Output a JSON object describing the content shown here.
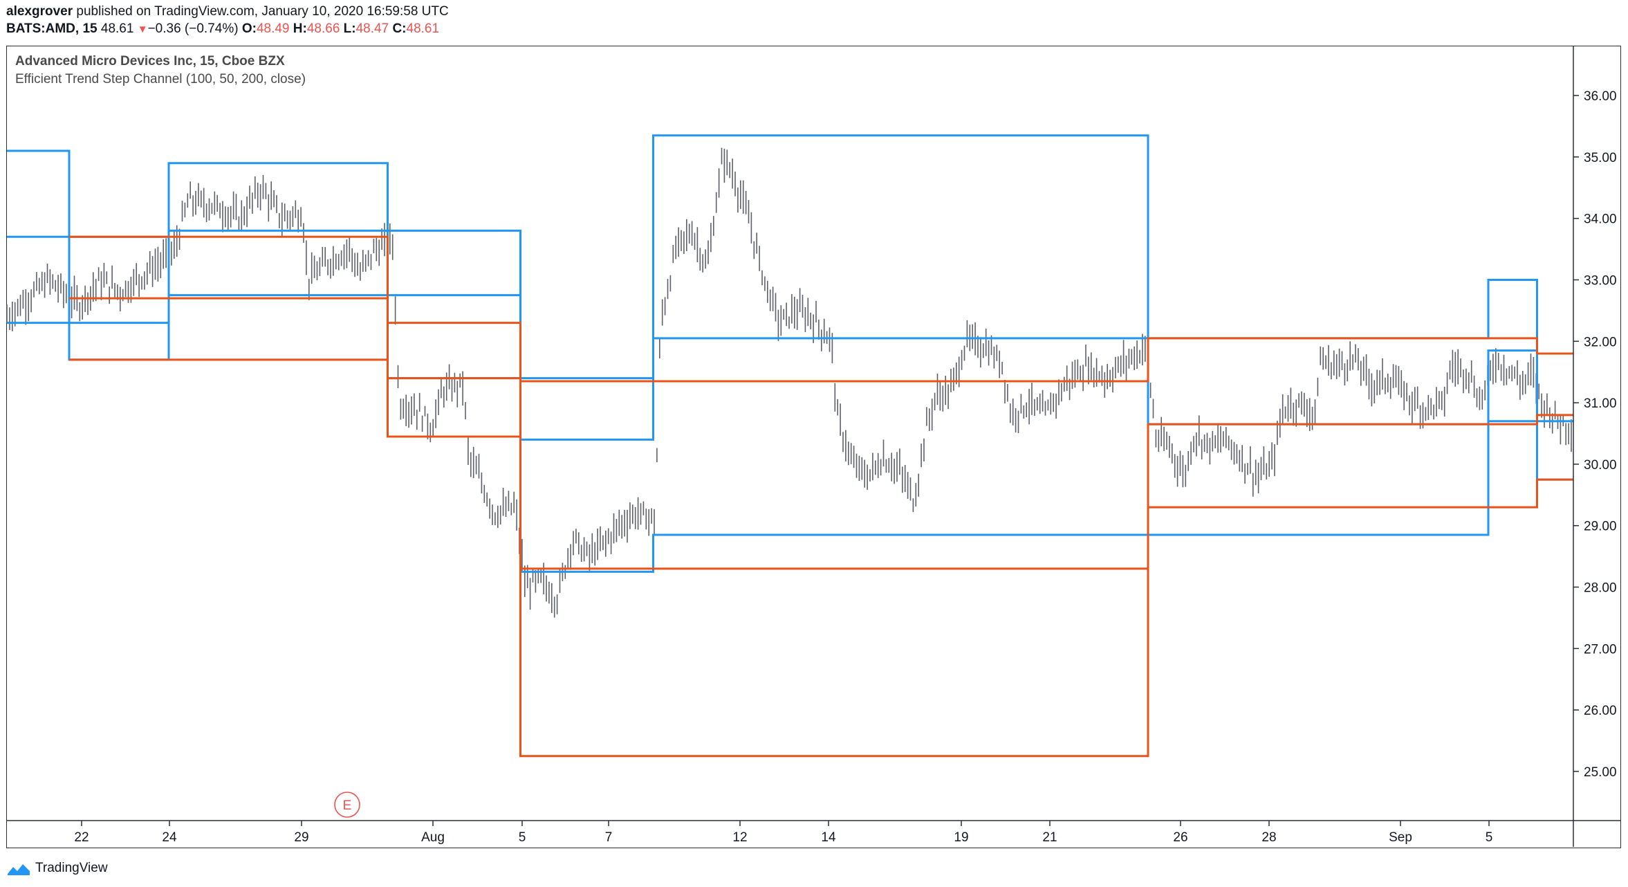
{
  "header": {
    "user": "alexgrover",
    "published_text": "published on TradingView.com, January 10, 2020 16:59:58 UTC",
    "symbol": "BATS:AMD, 15",
    "last": "48.61",
    "change_arrow": "▼",
    "change": "−0.36 (−0.74%)",
    "o_label": "O:",
    "o_value": "48.49",
    "h_label": "H:",
    "h_value": "48.66",
    "l_label": "L:",
    "l_value": "48.47",
    "c_label": "C:",
    "c_value": "48.61"
  },
  "legend": {
    "title": "Advanced Micro Devices Inc, 15, Cboe BZX",
    "indicator": "Efficient Trend Step Channel (100, 50, 200, close)"
  },
  "footer": {
    "brand": "TradingView",
    "icon": "tradingview-logo-icon"
  },
  "colors": {
    "blue": "#2196f3",
    "orange": "#e8531a",
    "candles": "#5d606b",
    "axis": "#2a2e39",
    "earnings": "#ef5350"
  },
  "chart_data": {
    "type": "line",
    "title": "",
    "xlabel": "",
    "ylabel": "",
    "ylim": [
      24.2,
      36.8
    ],
    "grid": false,
    "y_ticks": [
      "25.00",
      "26.00",
      "27.00",
      "28.00",
      "29.00",
      "30.00",
      "31.00",
      "32.00",
      "33.00",
      "34.00",
      "35.00",
      "36.00"
    ],
    "x_ticks": [
      "22",
      "24",
      "29",
      "Aug",
      "5",
      "7",
      "12",
      "14",
      "19",
      "21",
      "26",
      "28",
      "Sep",
      "5"
    ],
    "earnings_marker": {
      "label": "E",
      "x": "30"
    },
    "series": [
      {
        "steps": [
          [
            0,
            35.1
          ],
          [
            60,
            33.7
          ],
          [
            156,
            34.9
          ],
          [
            367,
            33.8
          ],
          [
            495,
            31.4
          ],
          [
            623,
            35.35
          ],
          [
            1100,
            32.05
          ],
          [
            1428,
            33.0
          ],
          [
            1475,
            31.8
          ]
        ]
      },
      {
        "steps": [
          [
            0,
            33.7
          ],
          [
            60,
            32.3
          ],
          [
            156,
            33.8
          ],
          [
            367,
            32.75
          ],
          [
            495,
            30.4
          ],
          [
            623,
            32.05
          ],
          [
            1100,
            28.85
          ],
          [
            1428,
            31.85
          ],
          [
            1475,
            30.7
          ]
        ]
      },
      {
        "steps": [
          [
            0,
            32.3
          ],
          [
            60,
            31.7
          ],
          [
            156,
            32.75
          ],
          [
            367,
            31.4
          ],
          [
            495,
            28.25
          ],
          [
            623,
            28.85
          ],
          [
            1100,
            30.65
          ],
          [
            1428,
            30.7
          ],
          [
            1475,
            29.75
          ]
        ]
      },
      {
        "steps": [
          [
            60,
            33.7
          ],
          [
            156,
            33.7
          ],
          [
            367,
            32.3
          ],
          [
            495,
            31.35
          ],
          [
            623,
            31.35
          ],
          [
            1100,
            32.05
          ],
          [
            1428,
            32.05
          ],
          [
            1475,
            31.8
          ]
        ]
      },
      {
        "steps": [
          [
            60,
            32.7
          ],
          [
            156,
            32.7
          ],
          [
            367,
            30.45
          ],
          [
            495,
            28.3
          ],
          [
            623,
            28.3
          ],
          [
            1100,
            30.65
          ],
          [
            1428,
            30.65
          ],
          [
            1475,
            30.8
          ]
        ]
      },
      {
        "steps": [
          [
            60,
            31.7
          ],
          [
            156,
            31.7
          ],
          [
            367,
            31.4
          ],
          [
            495,
            25.25
          ],
          [
            623,
            25.25
          ],
          [
            1100,
            29.3
          ],
          [
            1428,
            29.3
          ],
          [
            1475,
            29.75
          ]
        ]
      }
    ],
    "price_path": [
      [
        0,
        32.4
      ],
      [
        40,
        33.0
      ],
      [
        70,
        32.6
      ],
      [
        90,
        33.0
      ],
      [
        110,
        32.8
      ],
      [
        140,
        33.2
      ],
      [
        160,
        33.4
      ],
      [
        175,
        34.3
      ],
      [
        200,
        34.2
      ],
      [
        225,
        34.0
      ],
      [
        245,
        34.5
      ],
      [
        265,
        34.0
      ],
      [
        285,
        34.1
      ],
      [
        290,
        33.0
      ],
      [
        310,
        33.3
      ],
      [
        330,
        33.5
      ],
      [
        340,
        33.1
      ],
      [
        355,
        33.5
      ],
      [
        372,
        33.6
      ],
      [
        378,
        31.0
      ],
      [
        395,
        30.9
      ],
      [
        410,
        30.6
      ],
      [
        420,
        31.2
      ],
      [
        440,
        31.3
      ],
      [
        445,
        30.1
      ],
      [
        455,
        29.8
      ],
      [
        470,
        29.2
      ],
      [
        490,
        29.3
      ],
      [
        500,
        28.0
      ],
      [
        515,
        28.1
      ],
      [
        530,
        27.8
      ],
      [
        545,
        28.8
      ],
      [
        560,
        28.5
      ],
      [
        575,
        28.7
      ],
      [
        590,
        29.0
      ],
      [
        605,
        29.2
      ],
      [
        625,
        29.1
      ],
      [
        630,
        32.3
      ],
      [
        645,
        33.5
      ],
      [
        660,
        33.8
      ],
      [
        675,
        33.2
      ],
      [
        690,
        35.0
      ],
      [
        700,
        34.7
      ],
      [
        715,
        34.0
      ],
      [
        730,
        33.0
      ],
      [
        745,
        32.3
      ],
      [
        760,
        32.5
      ],
      [
        775,
        32.4
      ],
      [
        795,
        32.0
      ],
      [
        800,
        30.8
      ],
      [
        815,
        30.0
      ],
      [
        830,
        29.8
      ],
      [
        845,
        30.1
      ],
      [
        860,
        29.9
      ],
      [
        875,
        29.4
      ],
      [
        885,
        30.5
      ],
      [
        895,
        31.1
      ],
      [
        910,
        31.2
      ],
      [
        925,
        32.0
      ],
      [
        945,
        31.9
      ],
      [
        960,
        31.6
      ],
      [
        968,
        30.8
      ],
      [
        985,
        31.0
      ],
      [
        1000,
        30.8
      ],
      [
        1020,
        31.3
      ],
      [
        1040,
        31.6
      ],
      [
        1060,
        31.4
      ],
      [
        1080,
        31.7
      ],
      [
        1098,
        31.9
      ],
      [
        1108,
        30.4
      ],
      [
        1120,
        30.3
      ],
      [
        1135,
        29.8
      ],
      [
        1145,
        30.5
      ],
      [
        1160,
        30.3
      ],
      [
        1175,
        30.4
      ],
      [
        1190,
        30.1
      ],
      [
        1205,
        29.8
      ],
      [
        1220,
        30.0
      ],
      [
        1230,
        30.9
      ],
      [
        1245,
        31.0
      ],
      [
        1262,
        30.8
      ],
      [
        1265,
        31.7
      ],
      [
        1280,
        31.6
      ],
      [
        1300,
        31.7
      ],
      [
        1315,
        31.3
      ],
      [
        1335,
        31.4
      ],
      [
        1350,
        31.1
      ],
      [
        1365,
        30.9
      ],
      [
        1385,
        31.0
      ],
      [
        1392,
        31.6
      ],
      [
        1410,
        31.5
      ],
      [
        1420,
        31.0
      ],
      [
        1435,
        31.7
      ],
      [
        1450,
        31.5
      ],
      [
        1462,
        31.3
      ],
      [
        1470,
        31.5
      ],
      [
        1480,
        31.0
      ],
      [
        1495,
        30.7
      ],
      [
        1510,
        30.6
      ]
    ]
  }
}
